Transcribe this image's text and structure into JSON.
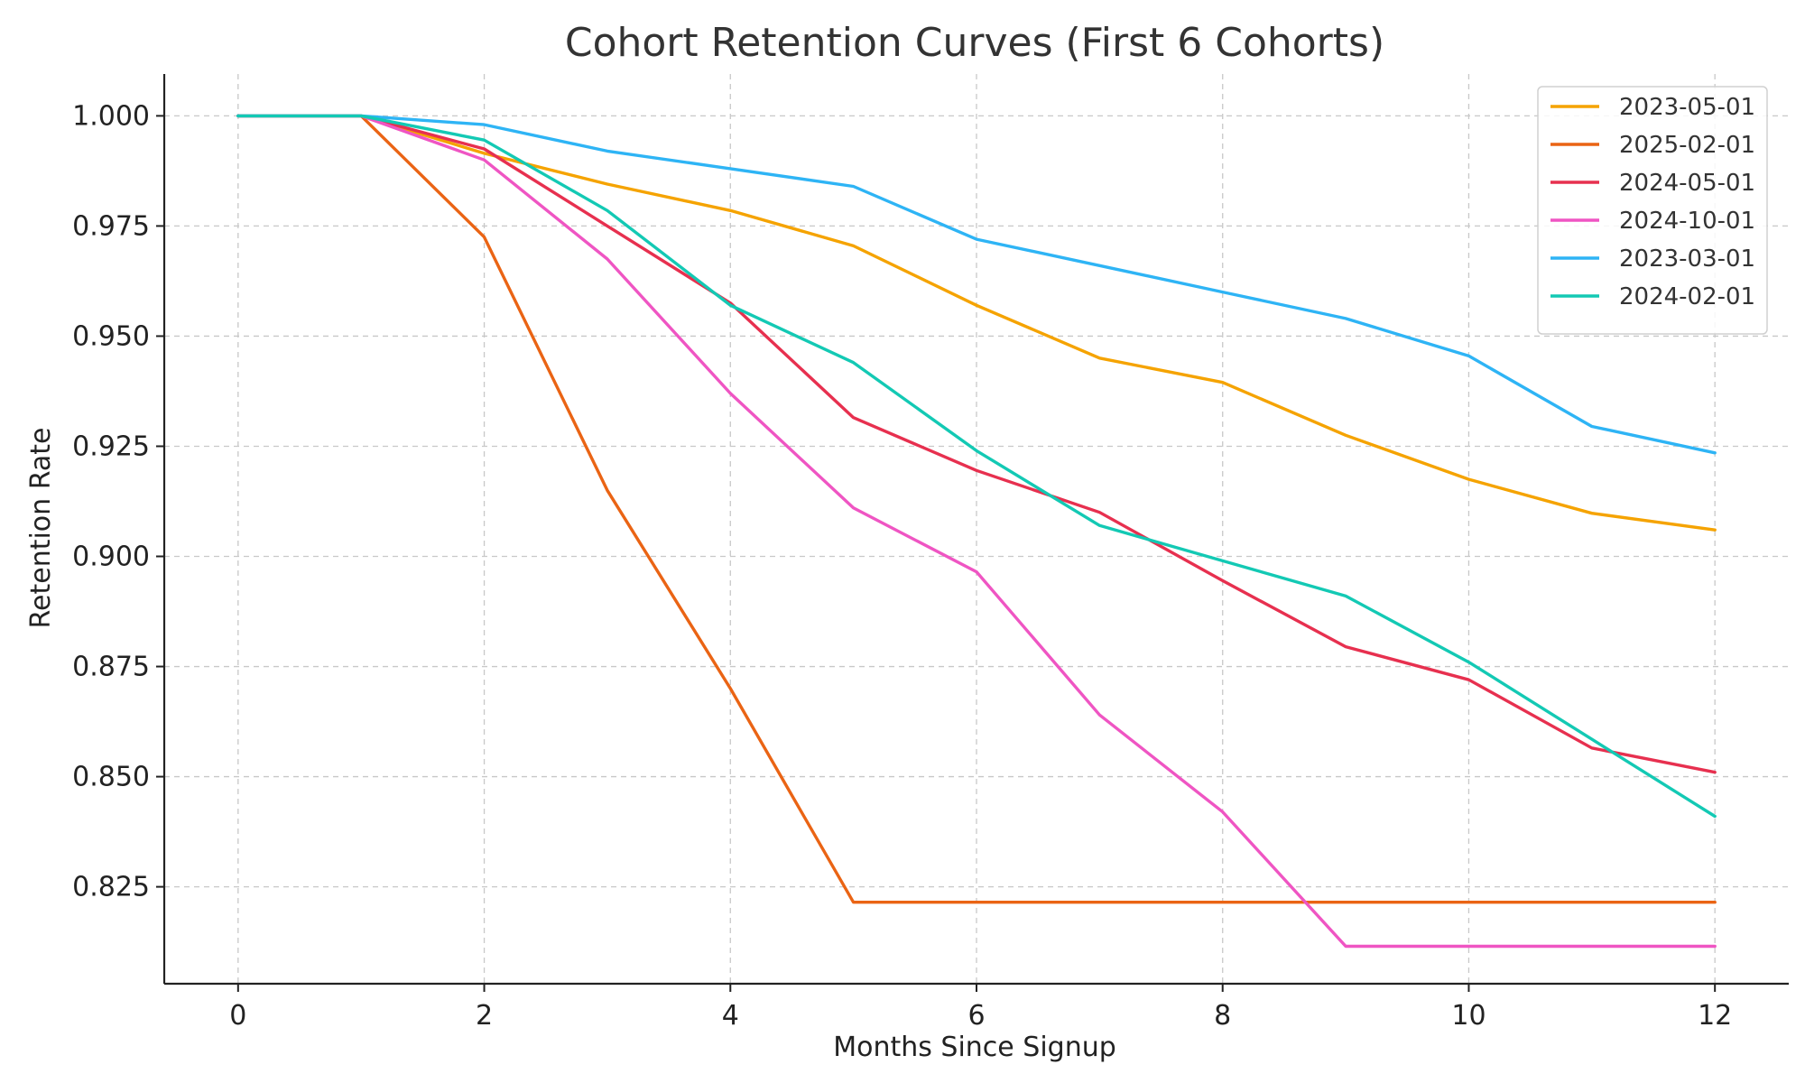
{
  "chart_data": {
    "type": "line",
    "title": "Cohort Retention Curves (First 6 Cohorts)",
    "xlabel": "Months Since Signup",
    "ylabel": "Retention Rate",
    "xlim": [
      -0.6,
      12.6
    ],
    "ylim": [
      0.803,
      1.0095
    ],
    "x_ticks": [
      0,
      2,
      4,
      6,
      8,
      10,
      12
    ],
    "y_ticks": [
      0.825,
      0.85,
      0.875,
      0.9,
      0.925,
      0.95,
      0.975,
      1.0
    ],
    "y_tick_labels": [
      "0.825",
      "0.850",
      "0.875",
      "0.900",
      "0.925",
      "0.950",
      "0.975",
      "1.000"
    ],
    "grid": true,
    "legend_position": "top-right",
    "x": [
      0,
      1,
      2,
      3,
      4,
      5,
      6,
      7,
      8,
      9,
      10,
      11,
      12
    ],
    "series": [
      {
        "name": "2023-05-01",
        "color": "#f5a300",
        "values": [
          1.0,
          1.0,
          0.9915,
          0.9845,
          0.9785,
          0.9705,
          0.957,
          0.945,
          0.9395,
          0.9275,
          0.9175,
          0.9098,
          0.906
        ]
      },
      {
        "name": "2025-02-01",
        "color": "#ea6414",
        "values": [
          1.0,
          1.0,
          0.9725,
          0.915,
          0.87,
          0.8215,
          0.8215,
          0.8215,
          0.8215,
          0.8215,
          0.8215,
          0.8215,
          0.8215
        ]
      },
      {
        "name": "2024-05-01",
        "color": "#e7304f",
        "values": [
          1.0,
          1.0,
          0.9925,
          0.975,
          0.9575,
          0.9315,
          0.9195,
          0.91,
          0.8945,
          0.8795,
          0.872,
          0.8565,
          0.851
        ]
      },
      {
        "name": "2024-10-01",
        "color": "#ef55c3",
        "values": [
          1.0,
          1.0,
          0.99,
          0.9675,
          0.937,
          0.911,
          0.8965,
          0.864,
          0.842,
          0.8115,
          0.8115,
          0.8115,
          0.8115
        ]
      },
      {
        "name": "2023-03-01",
        "color": "#2eb4f5",
        "values": [
          1.0,
          1.0,
          0.998,
          0.992,
          0.988,
          0.984,
          0.972,
          0.966,
          0.96,
          0.954,
          0.9455,
          0.9295,
          0.9235
        ]
      },
      {
        "name": "2024-02-01",
        "color": "#13c9b4",
        "values": [
          1.0,
          1.0,
          0.9945,
          0.9785,
          0.957,
          0.944,
          0.924,
          0.907,
          0.899,
          0.891,
          0.876,
          0.8585,
          0.841
        ]
      }
    ]
  }
}
